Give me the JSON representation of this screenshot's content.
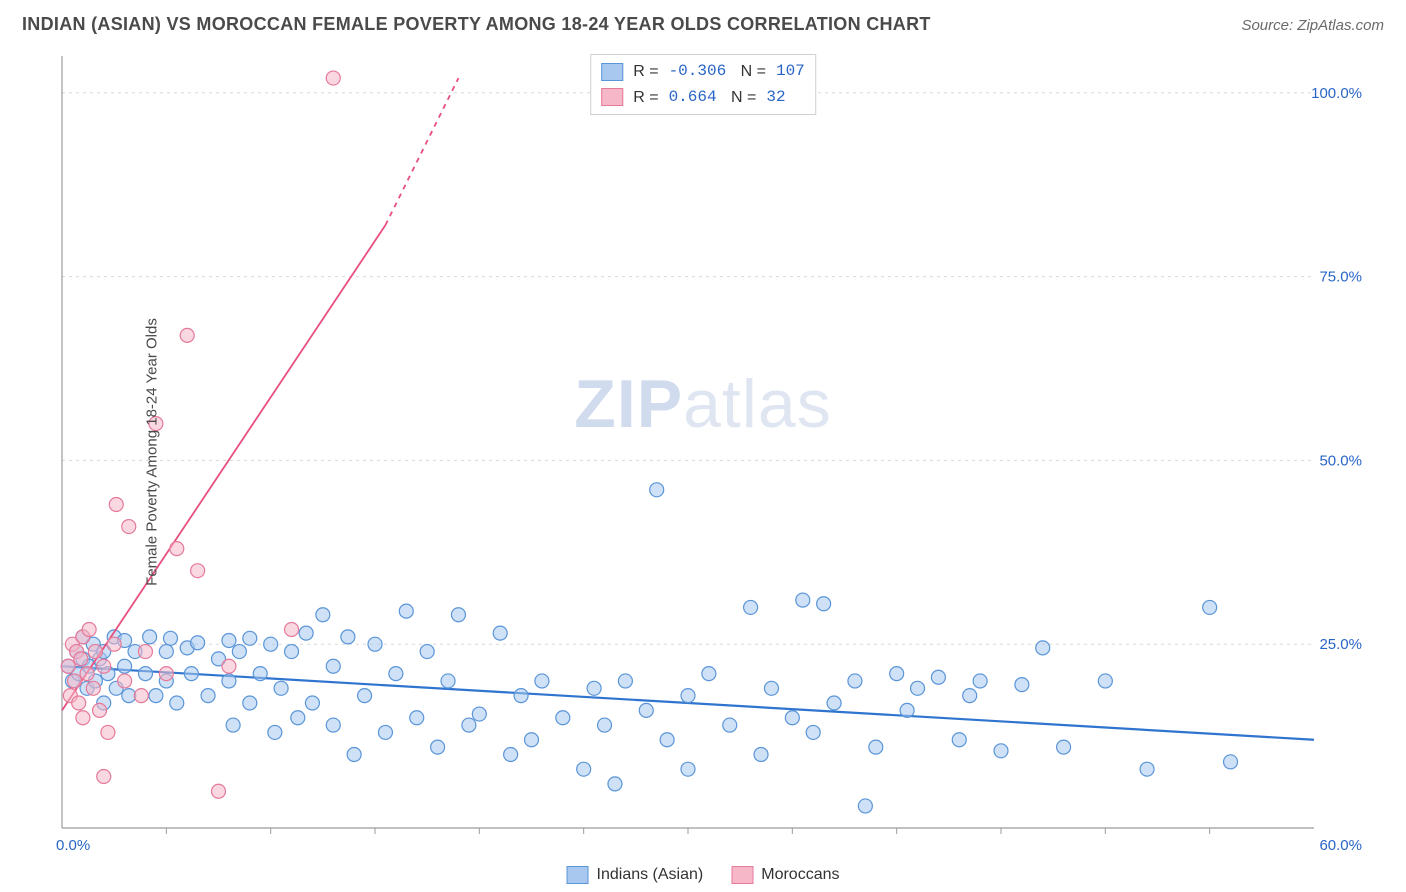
{
  "header": {
    "title": "INDIAN (ASIAN) VS MOROCCAN FEMALE POVERTY AMONG 18-24 YEAR OLDS CORRELATION CHART",
    "source": "Source: ZipAtlas.com"
  },
  "ylabel": "Female Poverty Among 18-24 Year Olds",
  "watermark": {
    "bold": "ZIP",
    "rest": "atlas"
  },
  "chart": {
    "type": "scatter",
    "xlim": [
      0,
      60
    ],
    "ylim": [
      0,
      105
    ],
    "x_axis_min_label": "0.0%",
    "x_axis_max_label": "60.0%",
    "y_ticks": [
      25,
      50,
      75,
      100
    ],
    "y_tick_labels": [
      "25.0%",
      "50.0%",
      "75.0%",
      "100.0%"
    ],
    "grid_color": "#d8d8d8",
    "axis_color": "#9c9c9c",
    "tick_label_color": "#2965c6",
    "background": "#ffffff",
    "series": [
      {
        "name": "Indians (Asian)",
        "color_fill": "#a8c8ef",
        "color_stroke": "#5a95d8",
        "fill_opacity": 0.55,
        "marker_radius": 7,
        "trend": {
          "y_at_x0": 22,
          "y_at_x60": 12,
          "color": "#2f74cf",
          "width": 2.2
        },
        "points": [
          [
            0.3,
            22
          ],
          [
            0.5,
            20
          ],
          [
            0.7,
            24
          ],
          [
            0.8,
            21
          ],
          [
            1,
            23
          ],
          [
            1,
            26
          ],
          [
            1.2,
            19
          ],
          [
            1.3,
            22
          ],
          [
            1.5,
            25
          ],
          [
            1.6,
            20
          ],
          [
            1.8,
            23
          ],
          [
            2,
            24
          ],
          [
            2,
            17
          ],
          [
            2.2,
            21
          ],
          [
            2.5,
            26
          ],
          [
            2.6,
            19
          ],
          [
            3,
            22
          ],
          [
            3,
            25.5
          ],
          [
            3.2,
            18
          ],
          [
            3.5,
            24
          ],
          [
            4,
            21
          ],
          [
            4.2,
            26
          ],
          [
            4.5,
            18
          ],
          [
            5,
            24
          ],
          [
            5,
            20
          ],
          [
            5.2,
            25.8
          ],
          [
            5.5,
            17
          ],
          [
            6,
            24.5
          ],
          [
            6.2,
            21
          ],
          [
            6.5,
            25.2
          ],
          [
            7,
            18
          ],
          [
            7.5,
            23
          ],
          [
            8,
            25.5
          ],
          [
            8,
            20
          ],
          [
            8.2,
            14
          ],
          [
            8.5,
            24
          ],
          [
            9,
            17
          ],
          [
            9,
            25.8
          ],
          [
            9.5,
            21
          ],
          [
            10,
            25
          ],
          [
            10.2,
            13
          ],
          [
            10.5,
            19
          ],
          [
            11,
            24
          ],
          [
            11.3,
            15
          ],
          [
            11.7,
            26.5
          ],
          [
            12,
            17
          ],
          [
            12.5,
            29
          ],
          [
            13,
            14
          ],
          [
            13,
            22
          ],
          [
            13.7,
            26
          ],
          [
            14,
            10
          ],
          [
            14.5,
            18
          ],
          [
            15,
            25
          ],
          [
            15.5,
            13
          ],
          [
            16,
            21
          ],
          [
            16.5,
            29.5
          ],
          [
            17,
            15
          ],
          [
            17.5,
            24
          ],
          [
            18,
            11
          ],
          [
            18.5,
            20
          ],
          [
            19,
            29
          ],
          [
            19.5,
            14
          ],
          [
            20,
            15.5
          ],
          [
            21,
            26.5
          ],
          [
            21.5,
            10
          ],
          [
            22,
            18
          ],
          [
            22.5,
            12
          ],
          [
            23,
            20
          ],
          [
            24,
            15
          ],
          [
            25,
            8
          ],
          [
            25.5,
            19
          ],
          [
            26,
            14
          ],
          [
            26.5,
            6
          ],
          [
            27,
            20
          ],
          [
            28,
            16
          ],
          [
            28.5,
            46
          ],
          [
            29,
            12
          ],
          [
            30,
            18
          ],
          [
            30,
            8
          ],
          [
            31,
            21
          ],
          [
            32,
            14
          ],
          [
            33,
            30
          ],
          [
            33.5,
            10
          ],
          [
            34,
            19
          ],
          [
            35,
            15
          ],
          [
            35.5,
            31
          ],
          [
            36,
            13
          ],
          [
            36.5,
            30.5
          ],
          [
            37,
            17
          ],
          [
            38,
            20
          ],
          [
            38.5,
            3
          ],
          [
            39,
            11
          ],
          [
            40,
            21
          ],
          [
            40.5,
            16
          ],
          [
            41,
            19
          ],
          [
            42,
            20.5
          ],
          [
            43,
            12
          ],
          [
            43.5,
            18
          ],
          [
            44,
            20
          ],
          [
            45,
            10.5
          ],
          [
            46,
            19.5
          ],
          [
            47,
            24.5
          ],
          [
            48,
            11
          ],
          [
            50,
            20
          ],
          [
            52,
            8
          ],
          [
            55,
            30
          ],
          [
            56,
            9
          ]
        ]
      },
      {
        "name": "Moroccans",
        "color_fill": "#f6b8c9",
        "color_stroke": "#e57a9a",
        "fill_opacity": 0.55,
        "marker_radius": 7,
        "trend": {
          "y_at_x0": 16,
          "y_at_x_end": 82,
          "x_end": 15.5,
          "dash_to_x": 19,
          "dash_to_y": 102,
          "color": "#e84f7d",
          "width": 1.8
        },
        "points": [
          [
            0.3,
            22
          ],
          [
            0.4,
            18
          ],
          [
            0.5,
            25
          ],
          [
            0.6,
            20
          ],
          [
            0.7,
            24
          ],
          [
            0.8,
            17
          ],
          [
            0.9,
            23
          ],
          [
            1,
            26
          ],
          [
            1,
            15
          ],
          [
            1.2,
            21
          ],
          [
            1.3,
            27
          ],
          [
            1.5,
            19
          ],
          [
            1.6,
            24
          ],
          [
            1.8,
            16
          ],
          [
            2,
            22
          ],
          [
            2,
            7
          ],
          [
            2.2,
            13
          ],
          [
            2.5,
            25
          ],
          [
            2.6,
            44
          ],
          [
            3,
            20
          ],
          [
            3.2,
            41
          ],
          [
            3.8,
            18
          ],
          [
            4,
            24
          ],
          [
            4.5,
            55
          ],
          [
            5,
            21
          ],
          [
            5.5,
            38
          ],
          [
            6,
            67
          ],
          [
            6.5,
            35
          ],
          [
            7.5,
            5
          ],
          [
            8,
            22
          ],
          [
            11,
            27
          ],
          [
            13,
            102
          ]
        ]
      }
    ]
  },
  "stats": [
    {
      "swatch_fill": "#a8c8ef",
      "swatch_stroke": "#5a95d8",
      "r": "-0.306",
      "n": "107"
    },
    {
      "swatch_fill": "#f6b8c9",
      "swatch_stroke": "#e57a9a",
      "r": "0.664",
      "n": "32"
    }
  ],
  "legend": [
    {
      "swatch_fill": "#a8c8ef",
      "swatch_stroke": "#5a95d8",
      "label": "Indians (Asian)"
    },
    {
      "swatch_fill": "#f6b8c9",
      "swatch_stroke": "#e57a9a",
      "label": "Moroccans"
    }
  ]
}
